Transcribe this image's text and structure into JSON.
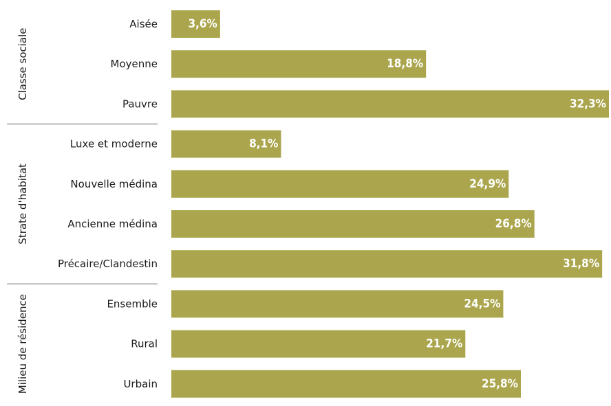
{
  "chart_data": {
    "type": "bar",
    "orientation": "horizontal",
    "bar_color": "#aba64d",
    "separator_color": "#c8c8c8",
    "text_color": "#1a1a1a",
    "value_label_color": "#ffffff",
    "xlim": [
      0,
      32.3
    ],
    "groups": [
      {
        "name": "Classe sociale",
        "items": [
          {
            "category": "Aisée",
            "value": 3.6,
            "label": "3,6%"
          },
          {
            "category": "Moyenne",
            "value": 18.8,
            "label": "18,8%"
          },
          {
            "category": "Pauvre",
            "value": 32.3,
            "label": "32,3%"
          }
        ]
      },
      {
        "name": "Strate d'habitat",
        "items": [
          {
            "category": "Luxe et moderne",
            "value": 8.1,
            "label": "8,1%"
          },
          {
            "category": "Nouvelle médina",
            "value": 24.9,
            "label": "24,9%"
          },
          {
            "category": "Ancienne médina",
            "value": 26.8,
            "label": "26,8%"
          },
          {
            "category": "Précaire/Clandestin",
            "value": 31.8,
            "label": "31,8%"
          }
        ]
      },
      {
        "name": "Milieu de résidence",
        "items": [
          {
            "category": "Ensemble",
            "value": 24.5,
            "label": "24,5%"
          },
          {
            "category": "Rural",
            "value": 21.7,
            "label": "21,7%"
          },
          {
            "category": "Urbain",
            "value": 25.8,
            "label": "25,8%"
          }
        ]
      }
    ]
  }
}
